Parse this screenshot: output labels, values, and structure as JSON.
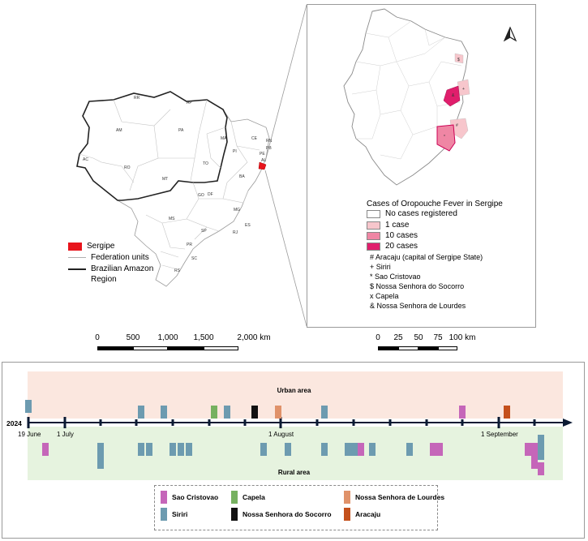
{
  "brazil_map": {
    "state_labels": [
      "RR",
      "AP",
      "AM",
      "PA",
      "MA",
      "CE",
      "RN",
      "PB",
      "PE",
      "AL",
      "PI",
      "AC",
      "RO",
      "MT",
      "TO",
      "BA",
      "GO",
      "DF",
      "MG",
      "ES",
      "MS",
      "SP",
      "RJ",
      "PR",
      "SC",
      "RS"
    ],
    "legend": [
      {
        "label": "Sergipe",
        "symbol": "fill",
        "color": "#e8141c"
      },
      {
        "label": "Federation units",
        "symbol": "line",
        "color": "#b0b0b0"
      },
      {
        "label": "Brazilian Amazon Region",
        "symbol": "line",
        "color": "#222222"
      }
    ],
    "scale": {
      "ticks": [
        "0",
        "500",
        "1,000",
        "1,500",
        "2,000 km"
      ]
    }
  },
  "sergipe_map": {
    "north_icon": "north-arrow-icon",
    "markers": [
      "$",
      "+",
      "#",
      "*",
      "&"
    ],
    "legend_title": "Cases of Oropouche Fever in Sergipe",
    "legend": [
      {
        "label": "No  cases registered",
        "color": "#ffffff"
      },
      {
        "label": "1 case",
        "color": "#f7c6cc"
      },
      {
        "label": "10 cases",
        "color": "#ef86a4"
      },
      {
        "label": "20 cases",
        "color": "#e01e6c"
      }
    ],
    "symbols": [
      "# Aracaju (capital of Sergipe State)",
      "+ Siriri",
      "*  Sao Cristovao",
      "$  Nossa Senhora do Socorro",
      "x  Capela",
      "&  Nossa Senhora de Lourdes"
    ],
    "scale": {
      "ticks": [
        "0",
        "25",
        "50",
        "75",
        "100 km"
      ]
    }
  },
  "timeline": {
    "urban_label": "Urban area",
    "rural_label": "Rural area",
    "year": "2024",
    "date_labels": [
      "19 June",
      "1 July",
      "1 August",
      "1 September"
    ],
    "key": [
      {
        "label": "Sao Cristovao",
        "color": "#c566b9"
      },
      {
        "label": "Capela",
        "color": "#76b160"
      },
      {
        "label": "Nossa Senhora de Lourdes",
        "color": "#e0926a"
      },
      {
        "label": "Siriri",
        "color": "#6d9bb0"
      },
      {
        "label": "Nossa Senhora do Socorro",
        "color": "#111111"
      },
      {
        "label": "Aracaju",
        "color": "#c4501c"
      }
    ]
  }
}
